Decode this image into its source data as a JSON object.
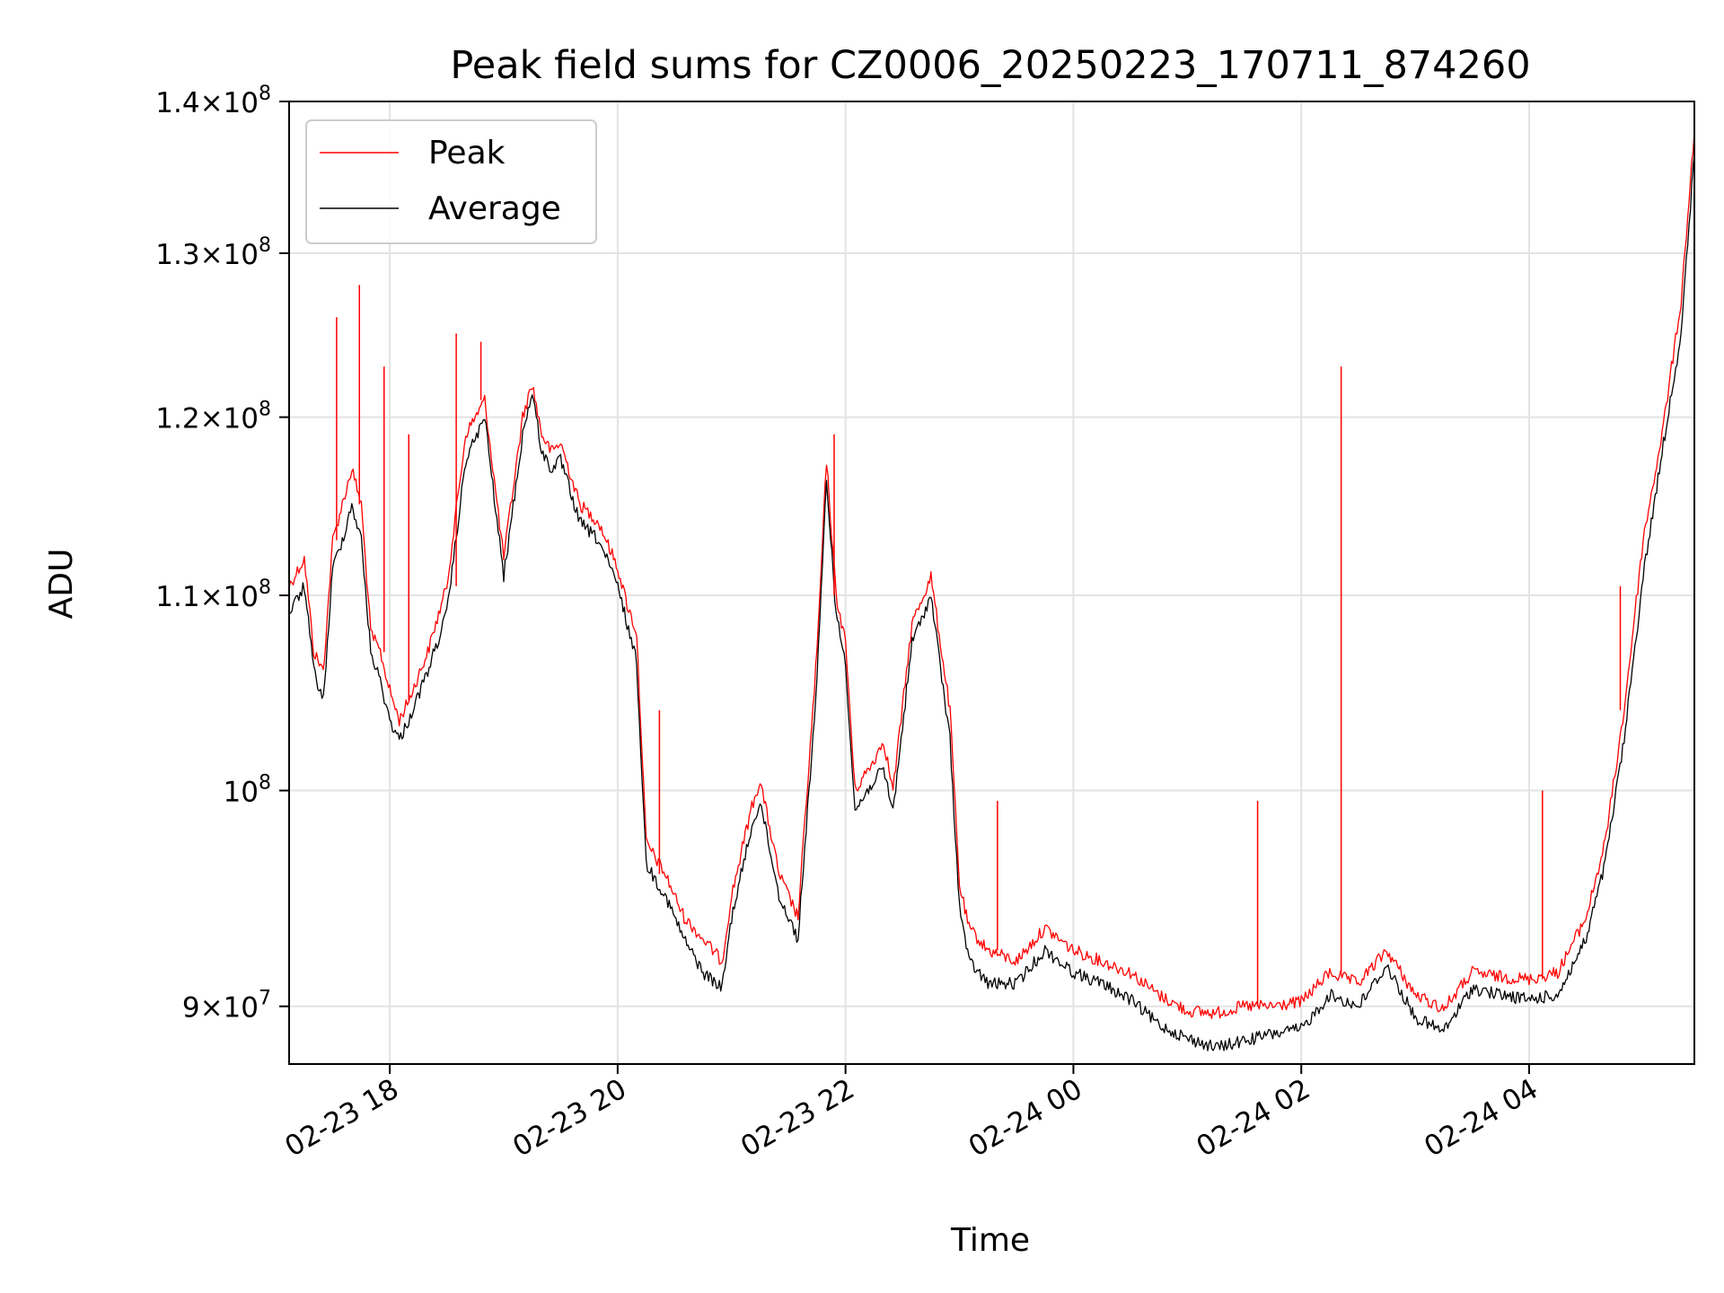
{
  "chart_data": {
    "type": "line",
    "title": "Peak field sums for CZ0006_20250223_170711_874260",
    "xlabel": "Time",
    "ylabel": "ADU",
    "yscale": "log",
    "grid": true,
    "legend_position": "top-left",
    "xlim": [
      "02-23 17:07",
      "02-24 05:27"
    ],
    "ylim": [
      87500000,
      140000000
    ],
    "x_ticks": [
      {
        "value": "02-23 18:00",
        "label": "02-23 18"
      },
      {
        "value": "02-23 20:00",
        "label": "02-23 20"
      },
      {
        "value": "02-23 22:00",
        "label": "02-23 22"
      },
      {
        "value": "02-24 00:00",
        "label": "02-24 00"
      },
      {
        "value": "02-24 02:00",
        "label": "02-24 02"
      },
      {
        "value": "02-24 04:00",
        "label": "02-24 04"
      }
    ],
    "y_ticks": [
      {
        "value": 90000000,
        "base": "9",
        "exp": "7"
      },
      {
        "value": 100000000,
        "base": "",
        "exp": "8"
      },
      {
        "value": 110000000,
        "base": "1.1",
        "exp": "8"
      },
      {
        "value": 120000000,
        "base": "1.2",
        "exp": "8"
      },
      {
        "value": 130000000,
        "base": "1.3",
        "exp": "8"
      },
      {
        "value": 140000000,
        "base": "1.4",
        "exp": "8"
      }
    ],
    "series": [
      {
        "name": "Peak",
        "color": "#ff0000",
        "x": [
          "02-23 17:07",
          "02-23 17:15",
          "02-23 17:20",
          "02-23 17:25",
          "02-23 17:30",
          "02-23 17:35",
          "02-23 17:40",
          "02-23 17:45",
          "02-23 17:50",
          "02-23 17:55",
          "02-23 18:00",
          "02-23 18:05",
          "02-23 18:10",
          "02-23 18:20",
          "02-23 18:30",
          "02-23 18:40",
          "02-23 18:50",
          "02-23 19:00",
          "02-23 19:10",
          "02-23 19:15",
          "02-23 19:20",
          "02-23 19:25",
          "02-23 19:30",
          "02-23 19:40",
          "02-23 19:50",
          "02-23 20:00",
          "02-23 20:05",
          "02-23 20:10",
          "02-23 20:15",
          "02-23 20:25",
          "02-23 20:35",
          "02-23 20:45",
          "02-23 20:55",
          "02-23 21:00",
          "02-23 21:10",
          "02-23 21:15",
          "02-23 21:25",
          "02-23 21:35",
          "02-23 21:45",
          "02-23 21:50",
          "02-23 21:55",
          "02-23 22:00",
          "02-23 22:05",
          "02-23 22:15",
          "02-23 22:20",
          "02-23 22:25",
          "02-23 22:35",
          "02-23 22:45",
          "02-23 22:55",
          "02-23 23:00",
          "02-23 23:05",
          "02-23 23:15",
          "02-23 23:30",
          "02-23 23:45",
          "02-24 00:00",
          "02-24 00:15",
          "02-24 00:30",
          "02-24 00:45",
          "02-24 01:00",
          "02-24 01:15",
          "02-24 01:30",
          "02-24 01:45",
          "02-24 02:00",
          "02-24 02:15",
          "02-24 02:30",
          "02-24 02:45",
          "02-24 03:00",
          "02-24 03:15",
          "02-24 03:30",
          "02-24 03:45",
          "02-24 04:00",
          "02-24 04:15",
          "02-24 04:30",
          "02-24 04:40",
          "02-24 04:50",
          "02-24 05:00",
          "02-24 05:10",
          "02-24 05:20",
          "02-24 05:27"
        ],
        "values": [
          110500000,
          112000000,
          107000000,
          106000000,
          113000000,
          115000000,
          117000000,
          115000000,
          108000000,
          107000000,
          105000000,
          103500000,
          104500000,
          107000000,
          110500000,
          119000000,
          121000000,
          112000000,
          120000000,
          122000000,
          119000000,
          118000000,
          118500000,
          115000000,
          114000000,
          111500000,
          109500000,
          108000000,
          97500000,
          96000000,
          94000000,
          93000000,
          92000000,
          95000000,
          99000000,
          100500000,
          96000000,
          94000000,
          107000000,
          117500000,
          110000000,
          107500000,
          100000000,
          101500000,
          102500000,
          100000000,
          108500000,
          111000000,
          104000000,
          95500000,
          93500000,
          92500000,
          92000000,
          93500000,
          92500000,
          92000000,
          91500000,
          90500000,
          89800000,
          89700000,
          90000000,
          90000000,
          90200000,
          91500000,
          91000000,
          92500000,
          90500000,
          89900000,
          91500000,
          91300000,
          91200000,
          91500000,
          94000000,
          97500000,
          104000000,
          113000000,
          119000000,
          127000000,
          138000000
        ]
      },
      {
        "name": "Average",
        "color": "#000000",
        "x": [
          "02-23 17:07",
          "02-23 17:15",
          "02-23 17:20",
          "02-23 17:25",
          "02-23 17:30",
          "02-23 17:35",
          "02-23 17:40",
          "02-23 17:45",
          "02-23 17:50",
          "02-23 17:55",
          "02-23 18:00",
          "02-23 18:05",
          "02-23 18:10",
          "02-23 18:20",
          "02-23 18:30",
          "02-23 18:40",
          "02-23 18:50",
          "02-23 19:00",
          "02-23 19:10",
          "02-23 19:15",
          "02-23 19:20",
          "02-23 19:25",
          "02-23 19:30",
          "02-23 19:40",
          "02-23 19:50",
          "02-23 20:00",
          "02-23 20:05",
          "02-23 20:10",
          "02-23 20:15",
          "02-23 20:25",
          "02-23 20:35",
          "02-23 20:45",
          "02-23 20:55",
          "02-23 21:00",
          "02-23 21:10",
          "02-23 21:15",
          "02-23 21:25",
          "02-23 21:35",
          "02-23 21:45",
          "02-23 21:50",
          "02-23 21:55",
          "02-23 22:00",
          "02-23 22:05",
          "02-23 22:15",
          "02-23 22:20",
          "02-23 22:25",
          "02-23 22:35",
          "02-23 22:45",
          "02-23 22:55",
          "02-23 23:00",
          "02-23 23:05",
          "02-23 23:15",
          "02-23 23:30",
          "02-23 23:45",
          "02-24 00:00",
          "02-24 00:15",
          "02-24 00:30",
          "02-24 00:45",
          "02-24 01:00",
          "02-24 01:15",
          "02-24 01:30",
          "02-24 01:45",
          "02-24 02:00",
          "02-24 02:15",
          "02-24 02:30",
          "02-24 02:45",
          "02-24 03:00",
          "02-24 03:15",
          "02-24 03:30",
          "02-24 03:45",
          "02-24 04:00",
          "02-24 04:15",
          "02-24 04:30",
          "02-24 04:40",
          "02-24 04:50",
          "02-24 05:00",
          "02-24 05:10",
          "02-24 05:20",
          "02-24 05:27"
        ],
        "values": [
          109000000,
          110500000,
          106000000,
          104500000,
          111500000,
          113000000,
          115000000,
          113000000,
          107000000,
          105500000,
          103500000,
          102500000,
          103500000,
          106000000,
          109000000,
          117500000,
          120000000,
          111000000,
          119000000,
          121500000,
          118000000,
          117000000,
          117500000,
          114000000,
          113000000,
          110500000,
          108500000,
          106500000,
          96500000,
          95000000,
          93000000,
          91500000,
          90800000,
          94000000,
          98000000,
          99500000,
          95000000,
          93000000,
          105500000,
          116500000,
          109000000,
          106500000,
          99000000,
          100500000,
          101000000,
          99000000,
          107500000,
          110000000,
          102500000,
          94500000,
          92000000,
          91000000,
          91000000,
          92500000,
          91500000,
          91000000,
          90300000,
          89200000,
          88600000,
          88200000,
          88500000,
          88800000,
          89000000,
          90500000,
          90000000,
          91800000,
          89500000,
          88900000,
          90800000,
          90500000,
          90300000,
          90500000,
          93000000,
          96500000,
          102500000,
          111000000,
          118000000,
          125000000,
          136500000
        ]
      }
    ],
    "spikes": [
      {
        "series": "Peak",
        "x": "02-23 17:32",
        "value": 126000000
      },
      {
        "series": "Peak",
        "x": "02-23 17:44",
        "value": 128000000
      },
      {
        "series": "Peak",
        "x": "02-23 17:57",
        "value": 123000000
      },
      {
        "series": "Peak",
        "x": "02-23 18:10",
        "value": 119000000
      },
      {
        "series": "Peak",
        "x": "02-23 18:35",
        "value": 125000000
      },
      {
        "series": "Peak",
        "x": "02-23 18:48",
        "value": 124500000
      },
      {
        "series": "Peak",
        "x": "02-23 20:22",
        "value": 104000000
      },
      {
        "series": "Peak",
        "x": "02-23 21:54",
        "value": 119000000
      },
      {
        "series": "Peak",
        "x": "02-23 23:20",
        "value": 99500000
      },
      {
        "series": "Peak",
        "x": "02-24 01:37",
        "value": 99500000
      },
      {
        "series": "Peak",
        "x": "02-24 02:21",
        "value": 123000000
      },
      {
        "series": "Peak",
        "x": "02-24 04:07",
        "value": 100000000
      },
      {
        "series": "Peak",
        "x": "02-24 04:48",
        "value": 110500000
      }
    ]
  }
}
